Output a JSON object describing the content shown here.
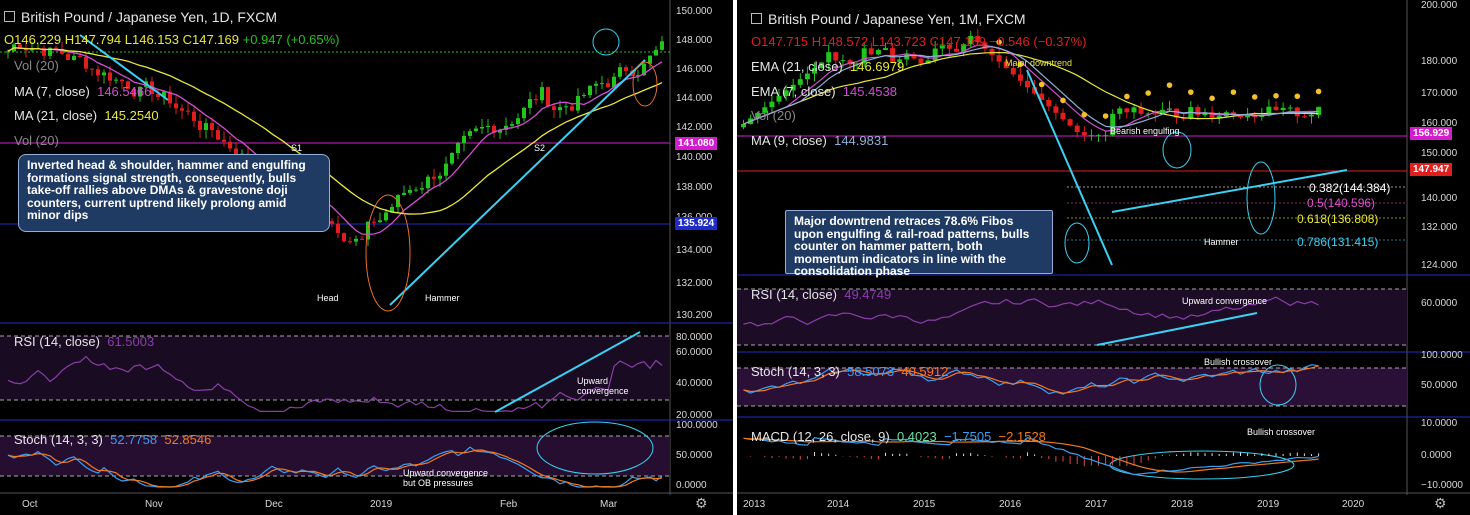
{
  "left": {
    "title": "British Pound / Japanese Yen, 1D, FXCM",
    "ohlc": {
      "o": "O146.229",
      "h": "H147.794",
      "l": "L146.153",
      "c": "C147.169",
      "change": "+0.947 (+0.65%)"
    },
    "ind": {
      "vol1": "Vol (20)",
      "ma7_label": "MA (7, close)",
      "ma7_val": "146.5466",
      "ma21_label": "MA (21, close)",
      "ma21_val": "145.2540",
      "vol2": "Vol (20)",
      "rsi_label": "RSI (14, close)",
      "rsi_val": "61.5003",
      "stoch_label": "Stoch (14, 3, 3)",
      "stoch_k": "52.7758",
      "stoch_d": "52.8546"
    },
    "callout": "Inverted head & shoulder, hammer and engulfing formations signal strength, consequently, bulls take-off rallies above DMAs & gravestone doji counters, current uptrend likely prolong amid minor dips",
    "annotations": {
      "s1": "S1",
      "s2": "S2",
      "head": "Head",
      "hammer": "Hammer",
      "upconv": "Upward\nconvergence",
      "upconv2": "Upward convergence\nbut OB pressures"
    },
    "price_axis": [
      "150.000",
      "148.000",
      "146.000",
      "144.000",
      "142.000",
      "140.000",
      "138.000",
      "136.000",
      "134.000",
      "132.000",
      "130.200"
    ],
    "price_tags": {
      "current": "141.080",
      "support": "135.924"
    },
    "rsi_axis": [
      "80.0000",
      "60.0000",
      "40.0000",
      "20.0000"
    ],
    "stoch_axis": [
      "100.0000",
      "50.0000",
      "0.0000"
    ],
    "time_axis": [
      "Oct",
      "Nov",
      "Dec",
      "2019",
      "Feb",
      "Mar"
    ],
    "colors": {
      "up": "#22c41e",
      "down": "#e01e1e",
      "ma7": "#d14fd1",
      "ma21": "#e8e83a",
      "rsi": "#8a3fa8",
      "stochK": "#3a9ef2",
      "stochD": "#f07a20",
      "arrow": "#3ad1f2"
    }
  },
  "right": {
    "title": "British Pound / Japanese Yen, 1M, FXCM",
    "ohlc": {
      "o": "O147.715",
      "h": "H148.572",
      "l": "L143.723",
      "c": "C147.169",
      "change": "−0.546 (−0.37%)"
    },
    "ind": {
      "ema21_label": "EMA (21, close)",
      "ema21_val": "146.6979",
      "ema7_label": "EMA (7, close)",
      "ema7_val": "145.4538",
      "vol": "Vol (20)",
      "ma9_label": "MA (9, close)",
      "ma9_val": "144.9831",
      "rsi_label": "RSI (14, close)",
      "rsi_val": "49.4749",
      "stoch_label": "Stoch (14, 3, 3)",
      "stoch_k": "58.5073",
      "stoch_d": "40.5912",
      "macd_label": "MACD (12, 26, close, 9)",
      "macd_a": "0.4023",
      "macd_b": "−1.7505",
      "macd_c": "−2.1528"
    },
    "callout": "Major downtrend retraces 78.6% Fibos upon engulfing & rail-road patterns, bulls counter on hammer pattern, both momentum indicators in line with the consolidation phase",
    "annotations": {
      "major": "Major downtrend",
      "bearish": "Bearish engulfing",
      "hammer": "Hammer",
      "upconv": "Upward convergence",
      "bull1": "Bullish crossover",
      "bull2": "Bullish crossover"
    },
    "fibs": [
      {
        "label": "0.382(144.384)",
        "color": "#ffffff"
      },
      {
        "label": "0.5(140.596)",
        "color": "#e34fd1"
      },
      {
        "label": "0.618(136.808)",
        "color": "#e8e83a"
      },
      {
        "label": "0.786(131.415)",
        "color": "#3ad1f2"
      }
    ],
    "price_axis": [
      "200.000",
      "180.000",
      "170.000",
      "160.000",
      "150.000",
      "140.000",
      "132.000",
      "124.000"
    ],
    "price_tags": {
      "res": "156.929",
      "current": "147.947"
    },
    "rsi_axis": [
      "60.0000"
    ],
    "stoch_axis": [
      "100.0000",
      "50.0000"
    ],
    "macd_axis": [
      "10.0000",
      "0.0000",
      "−10.0000"
    ],
    "time_axis": [
      "2013",
      "2014",
      "2015",
      "2016",
      "2017",
      "2018",
      "2019",
      "2020"
    ]
  }
}
